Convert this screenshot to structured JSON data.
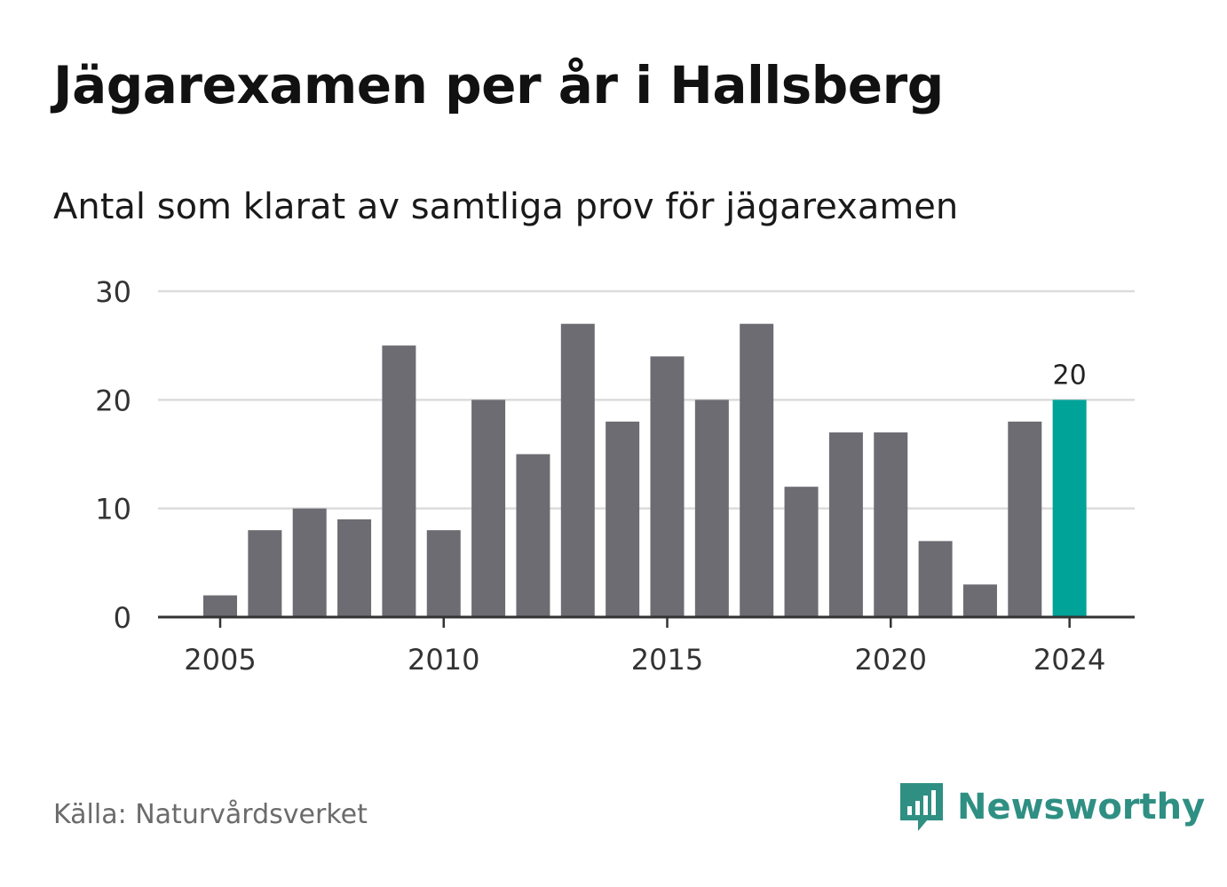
{
  "header": {
    "title": "Jägarexamen per år i Hallsberg",
    "subtitle": "Antal som klarat av samtliga prov för jägarexamen"
  },
  "footer": {
    "source": "Källa: Naturvårdsverket",
    "brand": "Newsworthy"
  },
  "colors": {
    "bar": "#6d6c72",
    "highlight": "#00a398",
    "grid": "#dcdcdc",
    "axis": "#333333",
    "brand": "#2f8f83"
  },
  "icons": {
    "brand_logo": "newsworthy-chart-bubble-icon"
  },
  "chart_data": {
    "type": "bar",
    "categories": [
      "2005",
      "2006",
      "2007",
      "2008",
      "2009",
      "2010",
      "2011",
      "2012",
      "2013",
      "2014",
      "2015",
      "2016",
      "2017",
      "2018",
      "2019",
      "2020",
      "2021",
      "2022",
      "2023",
      "2024"
    ],
    "values": [
      2,
      8,
      10,
      9,
      25,
      8,
      20,
      15,
      27,
      18,
      24,
      20,
      27,
      12,
      17,
      17,
      7,
      3,
      18,
      20
    ],
    "title": "Jägarexamen per år i Hallsberg",
    "subtitle": "Antal som klarat av samtliga prov för jägarexamen",
    "xlabel": "",
    "ylabel": "",
    "ylim": [
      0,
      30
    ],
    "yticks": [
      0,
      10,
      20,
      30
    ],
    "xticks": [
      "2005",
      "2010",
      "2015",
      "2020",
      "2024"
    ],
    "highlight_category": "2024",
    "data_labels": [
      {
        "category": "2024",
        "text": "20"
      }
    ],
    "grid": true,
    "legend": "none"
  }
}
